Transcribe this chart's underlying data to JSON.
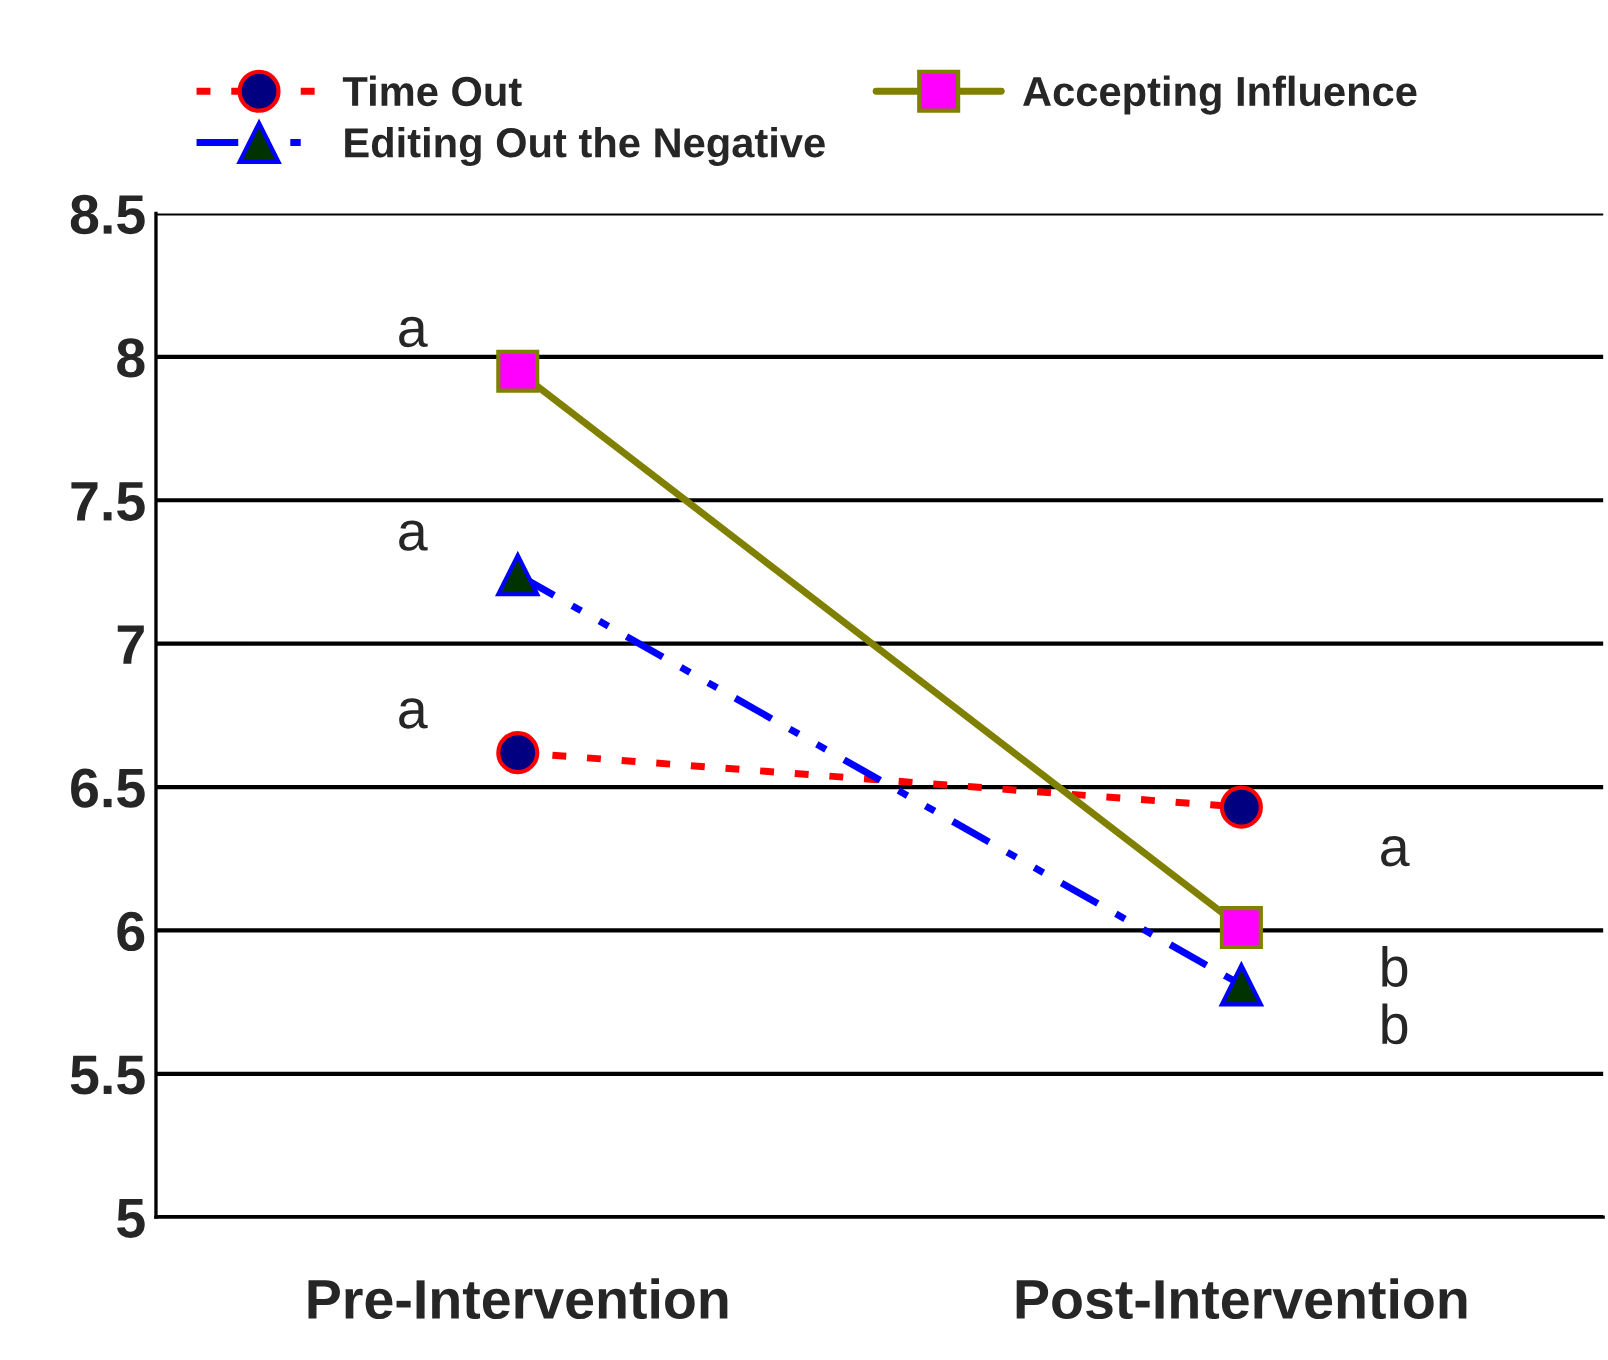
{
  "chart_data": {
    "type": "line",
    "categories": [
      "Pre-Intervention",
      "Post-Intervention"
    ],
    "series": [
      {
        "name": "Time Out",
        "color": "#ff0000",
        "marker": "circle",
        "line_style": "dotted",
        "values": [
          6.62,
          6.43
        ]
      },
      {
        "name": "Accepting Influence",
        "color": "#808000",
        "marker": "square",
        "line_style": "solid",
        "values": [
          7.95,
          6.01
        ]
      },
      {
        "name": "Editing Out the Negative",
        "color": "#0000ff",
        "marker": "triangle",
        "line_style": "dashdot",
        "values": [
          7.24,
          5.81
        ]
      }
    ],
    "ylim": [
      5,
      8.5
    ],
    "yticks": [
      5,
      5.5,
      6,
      6.5,
      7,
      7.5,
      8,
      8.5
    ],
    "grid": "y",
    "legend": "top",
    "annotations": [
      {
        "text": "a",
        "x": "Pre-Intervention",
        "y": 7.95
      },
      {
        "text": "a",
        "x": "Pre-Intervention",
        "y": 7.24
      },
      {
        "text": "a",
        "x": "Pre-Intervention",
        "y": 6.62
      },
      {
        "text": "a",
        "x": "Post-Intervention",
        "y": 6.43
      },
      {
        "text": "b",
        "x": "Post-Intervention",
        "y": 6.01
      },
      {
        "text": "b",
        "x": "Post-Intervention",
        "y": 5.81
      }
    ]
  }
}
